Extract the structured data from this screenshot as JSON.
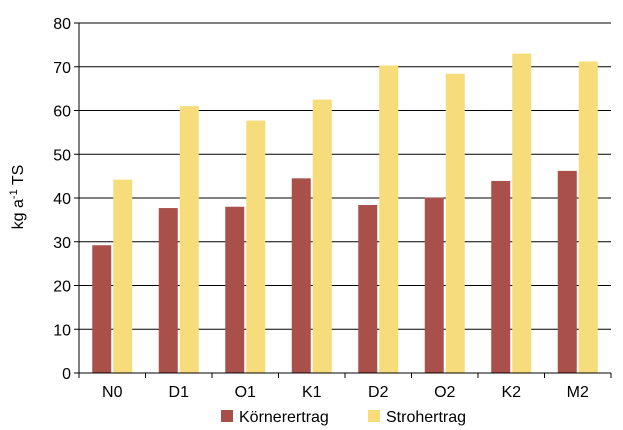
{
  "chart_data": {
    "type": "bar",
    "title": "",
    "xlabel": "",
    "ylabel": "kg a",
    "ylabel_superscript": "-1",
    "ylabel_suffix": " TS",
    "ylim": [
      0,
      80
    ],
    "yticks": [
      0,
      10,
      20,
      30,
      40,
      50,
      60,
      70,
      80
    ],
    "grid": "horizontal",
    "legend_position": "bottom",
    "categories": [
      "N0",
      "D1",
      "O1",
      "K1",
      "D2",
      "O2",
      "K2",
      "M2"
    ],
    "series": [
      {
        "name": "Körnerertrag",
        "color": "#a9504a",
        "values": [
          29.2,
          37.7,
          38.0,
          44.5,
          38.4,
          40.1,
          43.9,
          46.2
        ]
      },
      {
        "name": "Strohertrag",
        "color": "#f7dc7b",
        "values": [
          44.2,
          61.0,
          57.7,
          62.5,
          70.3,
          68.4,
          73.0,
          71.2
        ]
      }
    ]
  }
}
